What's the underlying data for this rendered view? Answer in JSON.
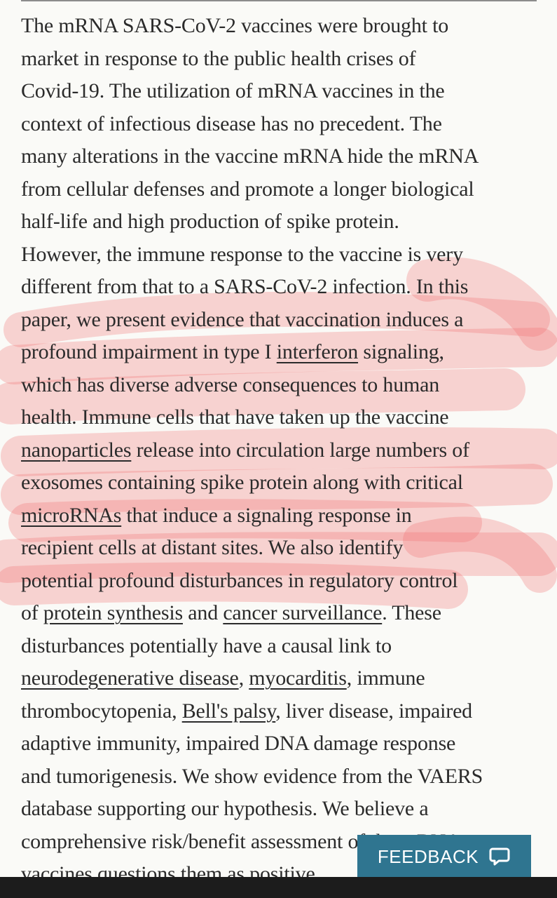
{
  "article": {
    "lines": [
      [
        "The mRNA SARS-CoV-2 vaccines were brought to"
      ],
      [
        "market in response to the public health crises of"
      ],
      [
        "Covid-19. The utilization of mRNA vaccines in the"
      ],
      [
        "context of infectious disease has no precedent. The"
      ],
      [
        "many alterations in the vaccine mRNA hide the mRNA"
      ],
      [
        "from cellular defenses and promote a longer biological"
      ],
      [
        "half-life and high production of spike protein."
      ],
      [
        "However, the immune response to the vaccine is very"
      ],
      [
        "different from that to a SARS-CoV-2 infection. In this"
      ],
      [
        "paper, we present evidence that vaccination induces a"
      ],
      [
        "profound impairment in type I ",
        {
          "link": "interferon",
          "name": "link-interferon"
        },
        " signaling,"
      ],
      [
        "which has diverse adverse consequences to human"
      ],
      [
        "health. Immune cells that have taken up the vaccine"
      ],
      [
        {
          "link": "nanoparticles",
          "name": "link-nanoparticles"
        },
        " release into circulation large numbers of"
      ],
      [
        "exosomes containing spike protein along with critical"
      ],
      [
        {
          "link": "microRNAs",
          "name": "link-micrornas"
        },
        " that induce a signaling response in"
      ],
      [
        "recipient cells at distant sites. We also identify"
      ],
      [
        "potential profound disturbances in regulatory control"
      ],
      [
        "of ",
        {
          "link": "protein synthesis",
          "name": "link-protein-synthesis"
        },
        " and ",
        {
          "link": "cancer surveillance",
          "name": "link-cancer-surveillance"
        },
        ". These"
      ],
      [
        "disturbances potentially have a causal link to"
      ],
      [
        {
          "link": "neurodegenerative disease",
          "name": "link-neurodegenerative-disease"
        },
        ", ",
        {
          "link": "myocarditis",
          "name": "link-myocarditis"
        },
        ", immune"
      ],
      [
        "thrombocytopenia, ",
        {
          "link": "Bell's palsy",
          "name": "link-bells-palsy"
        },
        ", liver disease, impaired"
      ],
      [
        "adaptive immunity, impaired DNA damage response"
      ],
      [
        "and tumorigenesis. We show evidence from the VAERS"
      ],
      [
        "database supporting our hypothesis. We believe a"
      ],
      [
        "comprehensive risk/benefit assessment of the mRNA"
      ],
      [
        "vaccines questions them as positive"
      ]
    ]
  },
  "feedback": {
    "label": "FEEDBACK",
    "icon": "chat-bubble-icon"
  },
  "colors": {
    "highlight": "#f26a6a",
    "feedback_bg": "#2f7590",
    "text": "#2b2b2b"
  }
}
